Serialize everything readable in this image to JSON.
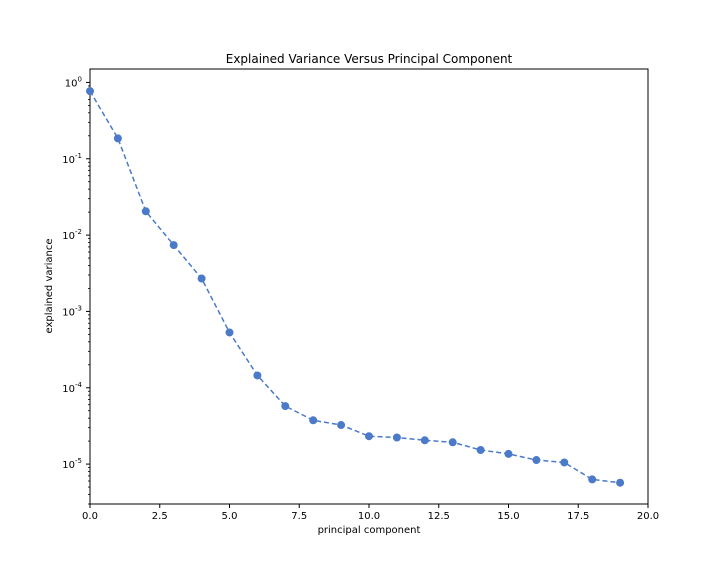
{
  "chart_data": {
    "type": "line",
    "title": "Explained Variance Versus Principal Component",
    "xlabel": "principal component",
    "ylabel": "explained variance",
    "xlim": [
      0,
      20
    ],
    "ylim": [
      3e-06,
      1.5
    ],
    "yscale": "log",
    "grid": false,
    "line_style": "dashed",
    "marker": "circle",
    "color": "#4a7ac8",
    "xticks": [
      "0.0",
      "2.5",
      "5.0",
      "7.5",
      "10.0",
      "12.5",
      "15.0",
      "17.5",
      "20.0"
    ],
    "ytick_exponents": [
      "0",
      "-1",
      "-2",
      "-3",
      "-4",
      "-5"
    ],
    "series": [
      {
        "x": [
          0,
          1,
          2,
          3,
          4,
          5,
          6,
          7,
          8,
          9,
          10,
          11,
          12,
          13,
          14,
          15,
          16,
          17,
          18,
          19
        ],
        "values": [
          0.77,
          0.185,
          0.0205,
          0.0074,
          0.0027,
          0.00053,
          0.000145,
          5.75e-05,
          3.75e-05,
          3.25e-05,
          2.32e-05,
          2.23e-05,
          2.05e-05,
          1.93e-05,
          1.53e-05,
          1.36e-05,
          1.13e-05,
          1.05e-05,
          6.3e-06,
          5.7e-06
        ]
      }
    ]
  }
}
